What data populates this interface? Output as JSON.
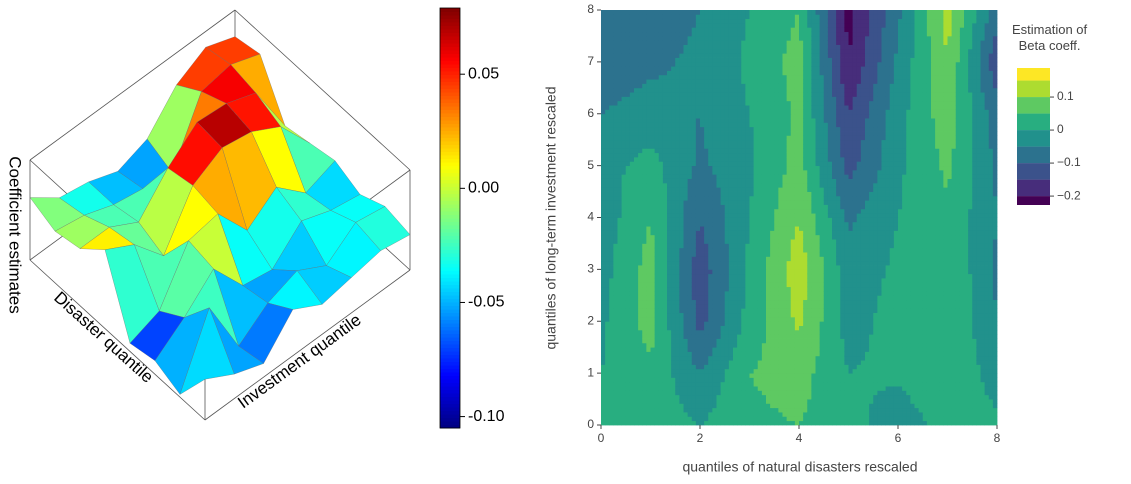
{
  "chart_data": [
    {
      "type": "surface3d",
      "colormap": "jet",
      "z_label": "Coefficient estimates",
      "y_label": "Disaster quantile",
      "x_label": "Investment quantile",
      "z": [
        [
          -0.03,
          -0.06,
          -0.08,
          -0.02,
          -0.05,
          -0.04,
          -0.03,
          -0.04
        ],
        [
          -0.1,
          0.02,
          -0.09,
          -0.05,
          -0.03,
          -0.06,
          -0.02,
          -0.03
        ],
        [
          -0.08,
          -0.04,
          0.01,
          -0.06,
          -0.07,
          -0.02,
          -0.04,
          -0.05
        ],
        [
          -0.09,
          -0.07,
          0.02,
          0.03,
          -0.04,
          0.0,
          -0.05,
          -0.03
        ],
        [
          0.04,
          0.01,
          -0.05,
          0.04,
          0.07,
          0.06,
          0.03,
          -0.04
        ],
        [
          0.0,
          0.0,
          -0.03,
          0.03,
          0.075,
          0.07,
          0.05,
          -0.05
        ],
        [
          -0.01,
          -0.02,
          -0.04,
          -0.05,
          -0.06,
          0.05,
          0.06,
          0.04
        ],
        [
          0.01,
          -0.03,
          -0.04,
          -0.06,
          -0.04,
          0.02,
          0.05,
          0.03
        ]
      ],
      "zlim": [
        -0.105,
        0.079
      ],
      "colorbar_ticks": [
        0.05,
        {
          "value": 0,
          "label": "0.00"
        },
        -0.05,
        {
          "value": -0.1,
          "label": "-0.10"
        }
      ]
    },
    {
      "type": "contour",
      "x": [
        0,
        1,
        2,
        3,
        4,
        5,
        6,
        7,
        8
      ],
      "y": [
        0,
        1,
        2,
        3,
        4,
        5,
        6,
        7,
        8
      ],
      "z": [
        [
          0.02,
          0.03,
          0.0,
          0.04,
          0.05,
          0.02,
          -0.03,
          0.02,
          0.01
        ],
        [
          0.0,
          0.04,
          -0.05,
          0.05,
          0.07,
          0.0,
          0.01,
          0.04,
          -0.02
        ],
        [
          -0.01,
          0.07,
          -0.12,
          0.02,
          0.11,
          -0.02,
          0.02,
          0.05,
          -0.05
        ],
        [
          -0.02,
          0.07,
          -0.13,
          0.01,
          0.13,
          -0.03,
          0.01,
          0.05,
          -0.06
        ],
        [
          -0.03,
          0.05,
          -0.1,
          0.0,
          0.1,
          -0.06,
          0.0,
          0.04,
          -0.05
        ],
        [
          -0.02,
          0.02,
          -0.06,
          -0.01,
          0.07,
          -0.12,
          -0.01,
          0.06,
          -0.06
        ],
        [
          -0.05,
          -0.03,
          -0.05,
          0.0,
          0.06,
          -0.15,
          -0.02,
          0.08,
          -0.08
        ],
        [
          -0.08,
          -0.06,
          -0.04,
          0.01,
          0.07,
          -0.2,
          -0.04,
          0.1,
          -0.14
        ],
        [
          -0.1,
          -0.08,
          -0.05,
          0.0,
          0.05,
          -0.22,
          -0.06,
          0.12,
          -0.08
        ]
      ],
      "xlim": [
        0,
        8
      ],
      "ylim": [
        0,
        8
      ],
      "xticks": [
        0,
        2,
        4,
        6,
        8
      ],
      "yticks": [
        0,
        1,
        2,
        3,
        4,
        5,
        6,
        7,
        8
      ],
      "x_label": "quantiles of natural disasters rescaled",
      "y_label": "quantiles of long-term investment rescaled",
      "colorbar_title": "Estimation of\nBeta coeff.",
      "levels": [
        -0.25,
        -0.2,
        -0.15,
        -0.1,
        -0.05,
        0,
        0.05,
        0.1,
        0.15,
        0.2
      ],
      "colors": [
        "#440154",
        "#472d7b",
        "#3b528b",
        "#2c728e",
        "#21918c",
        "#28ae80",
        "#5ec962",
        "#addc30",
        "#fde725"
      ],
      "clim": [
        -0.227,
        0.188
      ],
      "colorbar_ticks": [
        0.1,
        0,
        {
          "value": -0.1,
          "label": "−0.1"
        },
        {
          "value": -0.2,
          "label": "−0.2"
        }
      ]
    }
  ]
}
